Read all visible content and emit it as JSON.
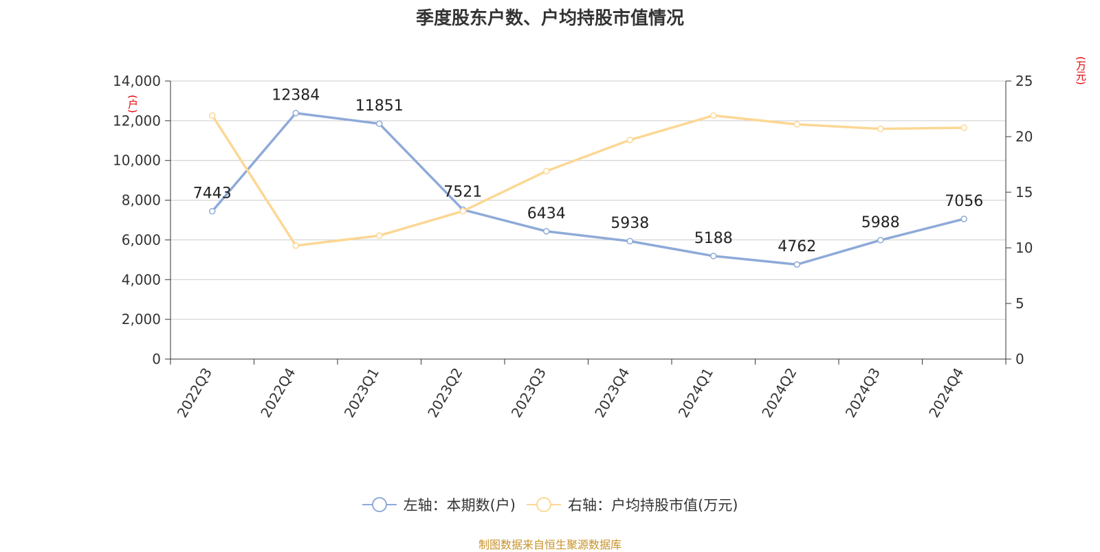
{
  "chart_data": {
    "type": "line",
    "title": "季度股东户数、户均持股市值情况",
    "categories": [
      "2022Q3",
      "2022Q4",
      "2023Q1",
      "2023Q2",
      "2023Q3",
      "2023Q4",
      "2024Q1",
      "2024Q2",
      "2024Q3",
      "2024Q4"
    ],
    "left_axis": {
      "unit": "(户)",
      "ylim": [
        0,
        14000
      ],
      "ticks": [
        "0",
        "2,000",
        "4,000",
        "6,000",
        "8,000",
        "10,000",
        "12,000",
        "14,000"
      ]
    },
    "right_axis": {
      "unit": "(万元)",
      "ylim": [
        0,
        25
      ],
      "ticks": [
        "0",
        "5",
        "10",
        "15",
        "20",
        "25"
      ]
    },
    "series": [
      {
        "name": "左轴：本期数(户)",
        "axis": "left",
        "color": "#8eaad8",
        "values": [
          7443,
          12384,
          11851,
          7521,
          6434,
          5938,
          5188,
          4762,
          5988,
          7056
        ],
        "labels": [
          "7443",
          "12384",
          "11851",
          "7521",
          "6434",
          "5938",
          "5188",
          "4762",
          "5988",
          "7056"
        ]
      },
      {
        "name": "右轴：户均持股市值(万元)",
        "axis": "right",
        "color": "#fcd794",
        "values": [
          21.9,
          10.2,
          11.1,
          13.3,
          16.9,
          19.7,
          21.9,
          21.1,
          20.7,
          20.8
        ]
      }
    ],
    "grid": true,
    "legend_position": "bottom"
  },
  "source": "制图数据来自恒生聚源数据库"
}
